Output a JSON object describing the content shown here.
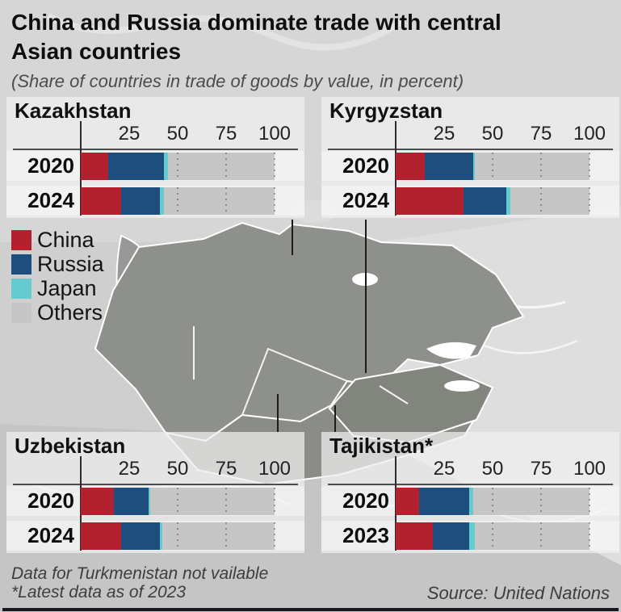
{
  "title": "China and Russia dominate trade with central Asian countries",
  "subtitle": "(Share of countries in trade of goods by value, in percent)",
  "legend": {
    "items": [
      {
        "label": "China",
        "color": "#b2222e"
      },
      {
        "label": "Russia",
        "color": "#1d4e7d"
      },
      {
        "label": "Japan",
        "color": "#66cbd0"
      },
      {
        "label": "Others",
        "color": "#c6c6c6"
      }
    ]
  },
  "footnotes": {
    "line1": "Data for Turkmenistan not vailable",
    "line2": "*Latest data as of 2023"
  },
  "source": "Source: United Nations",
  "chart_data": [
    {
      "type": "bar",
      "orientation": "horizontal",
      "stacked": true,
      "title": "Kazakhstan",
      "categories": [
        "2020",
        "2024"
      ],
      "series": [
        {
          "name": "China",
          "values": [
            14,
            21
          ]
        },
        {
          "name": "Russia",
          "values": [
            29,
            20
          ]
        },
        {
          "name": "Japan",
          "values": [
            2,
            2
          ]
        },
        {
          "name": "Others",
          "values": [
            55,
            57
          ]
        }
      ],
      "xlim": [
        0,
        100
      ],
      "ticks": [
        25,
        50,
        75,
        100
      ],
      "grid": "dotted"
    },
    {
      "type": "bar",
      "orientation": "horizontal",
      "stacked": true,
      "title": "Kyrgyzstan",
      "categories": [
        "2020",
        "2024"
      ],
      "series": [
        {
          "name": "China",
          "values": [
            15,
            35
          ]
        },
        {
          "name": "Russia",
          "values": [
            25,
            22
          ]
        },
        {
          "name": "Japan",
          "values": [
            1,
            2
          ]
        },
        {
          "name": "Others",
          "values": [
            59,
            41
          ]
        }
      ],
      "xlim": [
        0,
        100
      ],
      "ticks": [
        25,
        50,
        75,
        100
      ],
      "grid": "dotted"
    },
    {
      "type": "bar",
      "orientation": "horizontal",
      "stacked": true,
      "title": "Uzbekistan",
      "categories": [
        "2020",
        "2024"
      ],
      "series": [
        {
          "name": "China",
          "values": [
            17,
            21
          ]
        },
        {
          "name": "Russia",
          "values": [
            18,
            20
          ]
        },
        {
          "name": "Japan",
          "values": [
            1,
            1
          ]
        },
        {
          "name": "Others",
          "values": [
            64,
            58
          ]
        }
      ],
      "xlim": [
        0,
        100
      ],
      "ticks": [
        25,
        50,
        75,
        100
      ],
      "grid": "dotted"
    },
    {
      "type": "bar",
      "orientation": "horizontal",
      "stacked": true,
      "title": "Tajikistan*",
      "categories": [
        "2020",
        "2023"
      ],
      "series": [
        {
          "name": "China",
          "values": [
            12,
            19
          ]
        },
        {
          "name": "Russia",
          "values": [
            26,
            19
          ]
        },
        {
          "name": "Japan",
          "values": [
            2,
            3
          ]
        },
        {
          "name": "Others",
          "values": [
            60,
            59
          ]
        }
      ],
      "xlim": [
        0,
        100
      ],
      "ticks": [
        25,
        50,
        75,
        100
      ],
      "grid": "dotted"
    }
  ]
}
